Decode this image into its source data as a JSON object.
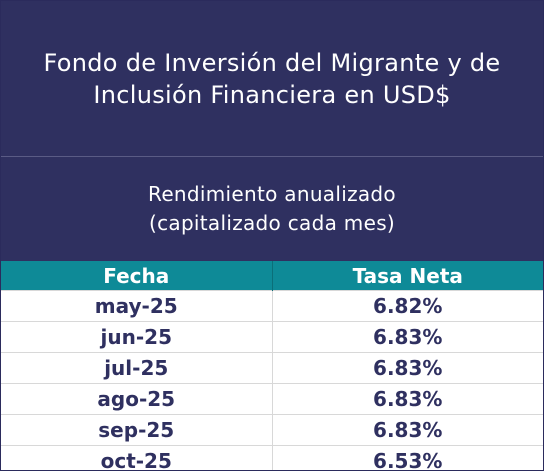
{
  "title": {
    "line1": "Fondo de Inversión del Migrante y de",
    "line2": "Inclusión Financiera en USD$"
  },
  "subtitle": {
    "line1": "Rendimiento anualizado",
    "line2": "(capitalizado cada mes)"
  },
  "table": {
    "headers": [
      "Fecha",
      "Tasa Neta"
    ],
    "rows": [
      [
        "may-25",
        "6.82%"
      ],
      [
        "jun-25",
        "6.83%"
      ],
      [
        "jul-25",
        "6.83%"
      ],
      [
        "ago-25",
        "6.83%"
      ],
      [
        "sep-25",
        "6.83%"
      ],
      [
        "oct-25",
        "6.53%"
      ]
    ]
  },
  "colors": {
    "navy": "#2f3060",
    "teal": "#0e8a97"
  }
}
